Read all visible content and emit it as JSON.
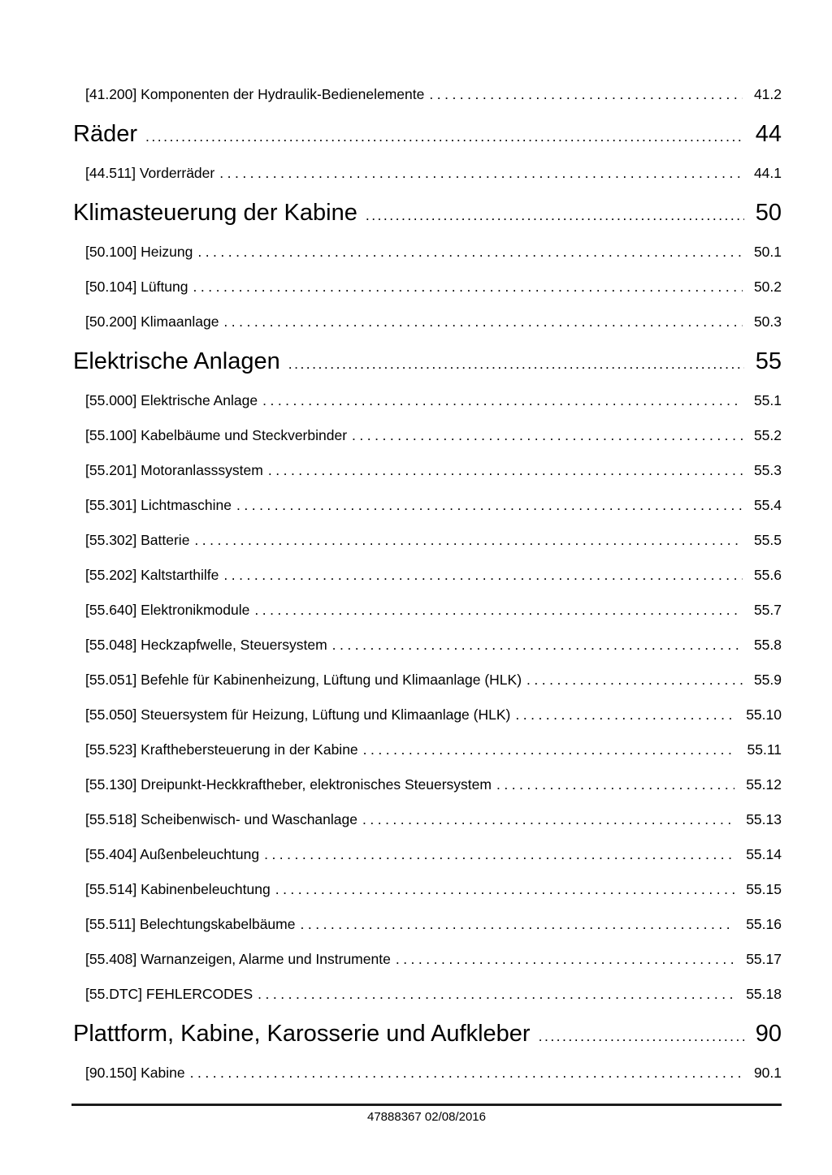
{
  "footer": {
    "text": "47888367 02/08/2016"
  },
  "toc": {
    "items": [
      {
        "type": "entry",
        "label": "[41.200] Komponenten der Hydraulik-Bedienelemente",
        "page": "41.2"
      },
      {
        "type": "chapter",
        "label": "Räder",
        "page": "44"
      },
      {
        "type": "entry",
        "label": "[44.511] Vorderräder",
        "page": "44.1"
      },
      {
        "type": "chapter",
        "label": "Klimasteuerung der Kabine",
        "page": "50"
      },
      {
        "type": "entry",
        "label": "[50.100] Heizung",
        "page": "50.1"
      },
      {
        "type": "entry",
        "label": "[50.104] Lüftung",
        "page": "50.2"
      },
      {
        "type": "entry",
        "label": "[50.200] Klimaanlage",
        "page": "50.3"
      },
      {
        "type": "chapter",
        "label": "Elektrische Anlagen",
        "page": "55"
      },
      {
        "type": "entry",
        "label": "[55.000] Elektrische Anlage",
        "page": "55.1"
      },
      {
        "type": "entry",
        "label": "[55.100] Kabelbäume und Steckverbinder",
        "page": "55.2"
      },
      {
        "type": "entry",
        "label": "[55.201] Motoranlasssystem",
        "page": "55.3"
      },
      {
        "type": "entry",
        "label": "[55.301] Lichtmaschine",
        "page": "55.4"
      },
      {
        "type": "entry",
        "label": "[55.302] Batterie",
        "page": "55.5"
      },
      {
        "type": "entry",
        "label": "[55.202] Kaltstarthilfe",
        "page": "55.6"
      },
      {
        "type": "entry",
        "label": "[55.640] Elektronikmodule",
        "page": "55.7"
      },
      {
        "type": "entry",
        "label": "[55.048] Heckzapfwelle, Steuersystem",
        "page": "55.8"
      },
      {
        "type": "entry",
        "label": "[55.051] Befehle für Kabinenheizung, Lüftung und Klimaanlage (HLK)",
        "page": "55.9"
      },
      {
        "type": "entry",
        "label": "[55.050] Steuersystem für Heizung, Lüftung und Klimaanlage (HLK)",
        "page": "55.10"
      },
      {
        "type": "entry",
        "label": "[55.523] Krafthebersteuerung in der Kabine",
        "page": "55.11"
      },
      {
        "type": "entry",
        "label": "[55.130] Dreipunkt-Heckkraftheber, elektronisches Steuersystem",
        "page": "55.12"
      },
      {
        "type": "entry",
        "label": "[55.518] Scheibenwisch- und Waschanlage",
        "page": "55.13"
      },
      {
        "type": "entry",
        "label": "[55.404] Außenbeleuchtung",
        "page": "55.14"
      },
      {
        "type": "entry",
        "label": "[55.514] Kabinenbeleuchtung",
        "page": "55.15"
      },
      {
        "type": "entry",
        "label": "[55.511] Belechtungskabelbäume",
        "page": "55.16"
      },
      {
        "type": "entry",
        "label": "[55.408] Warnanzeigen, Alarme und Instrumente",
        "page": "55.17"
      },
      {
        "type": "entry",
        "label": "[55.DTC] FEHLERCODES",
        "page": "55.18"
      },
      {
        "type": "chapter",
        "label": "Plattform, Kabine, Karosserie und Aufkleber",
        "page": "90"
      },
      {
        "type": "entry",
        "label": "[90.150] Kabine",
        "page": "90.1"
      }
    ]
  }
}
